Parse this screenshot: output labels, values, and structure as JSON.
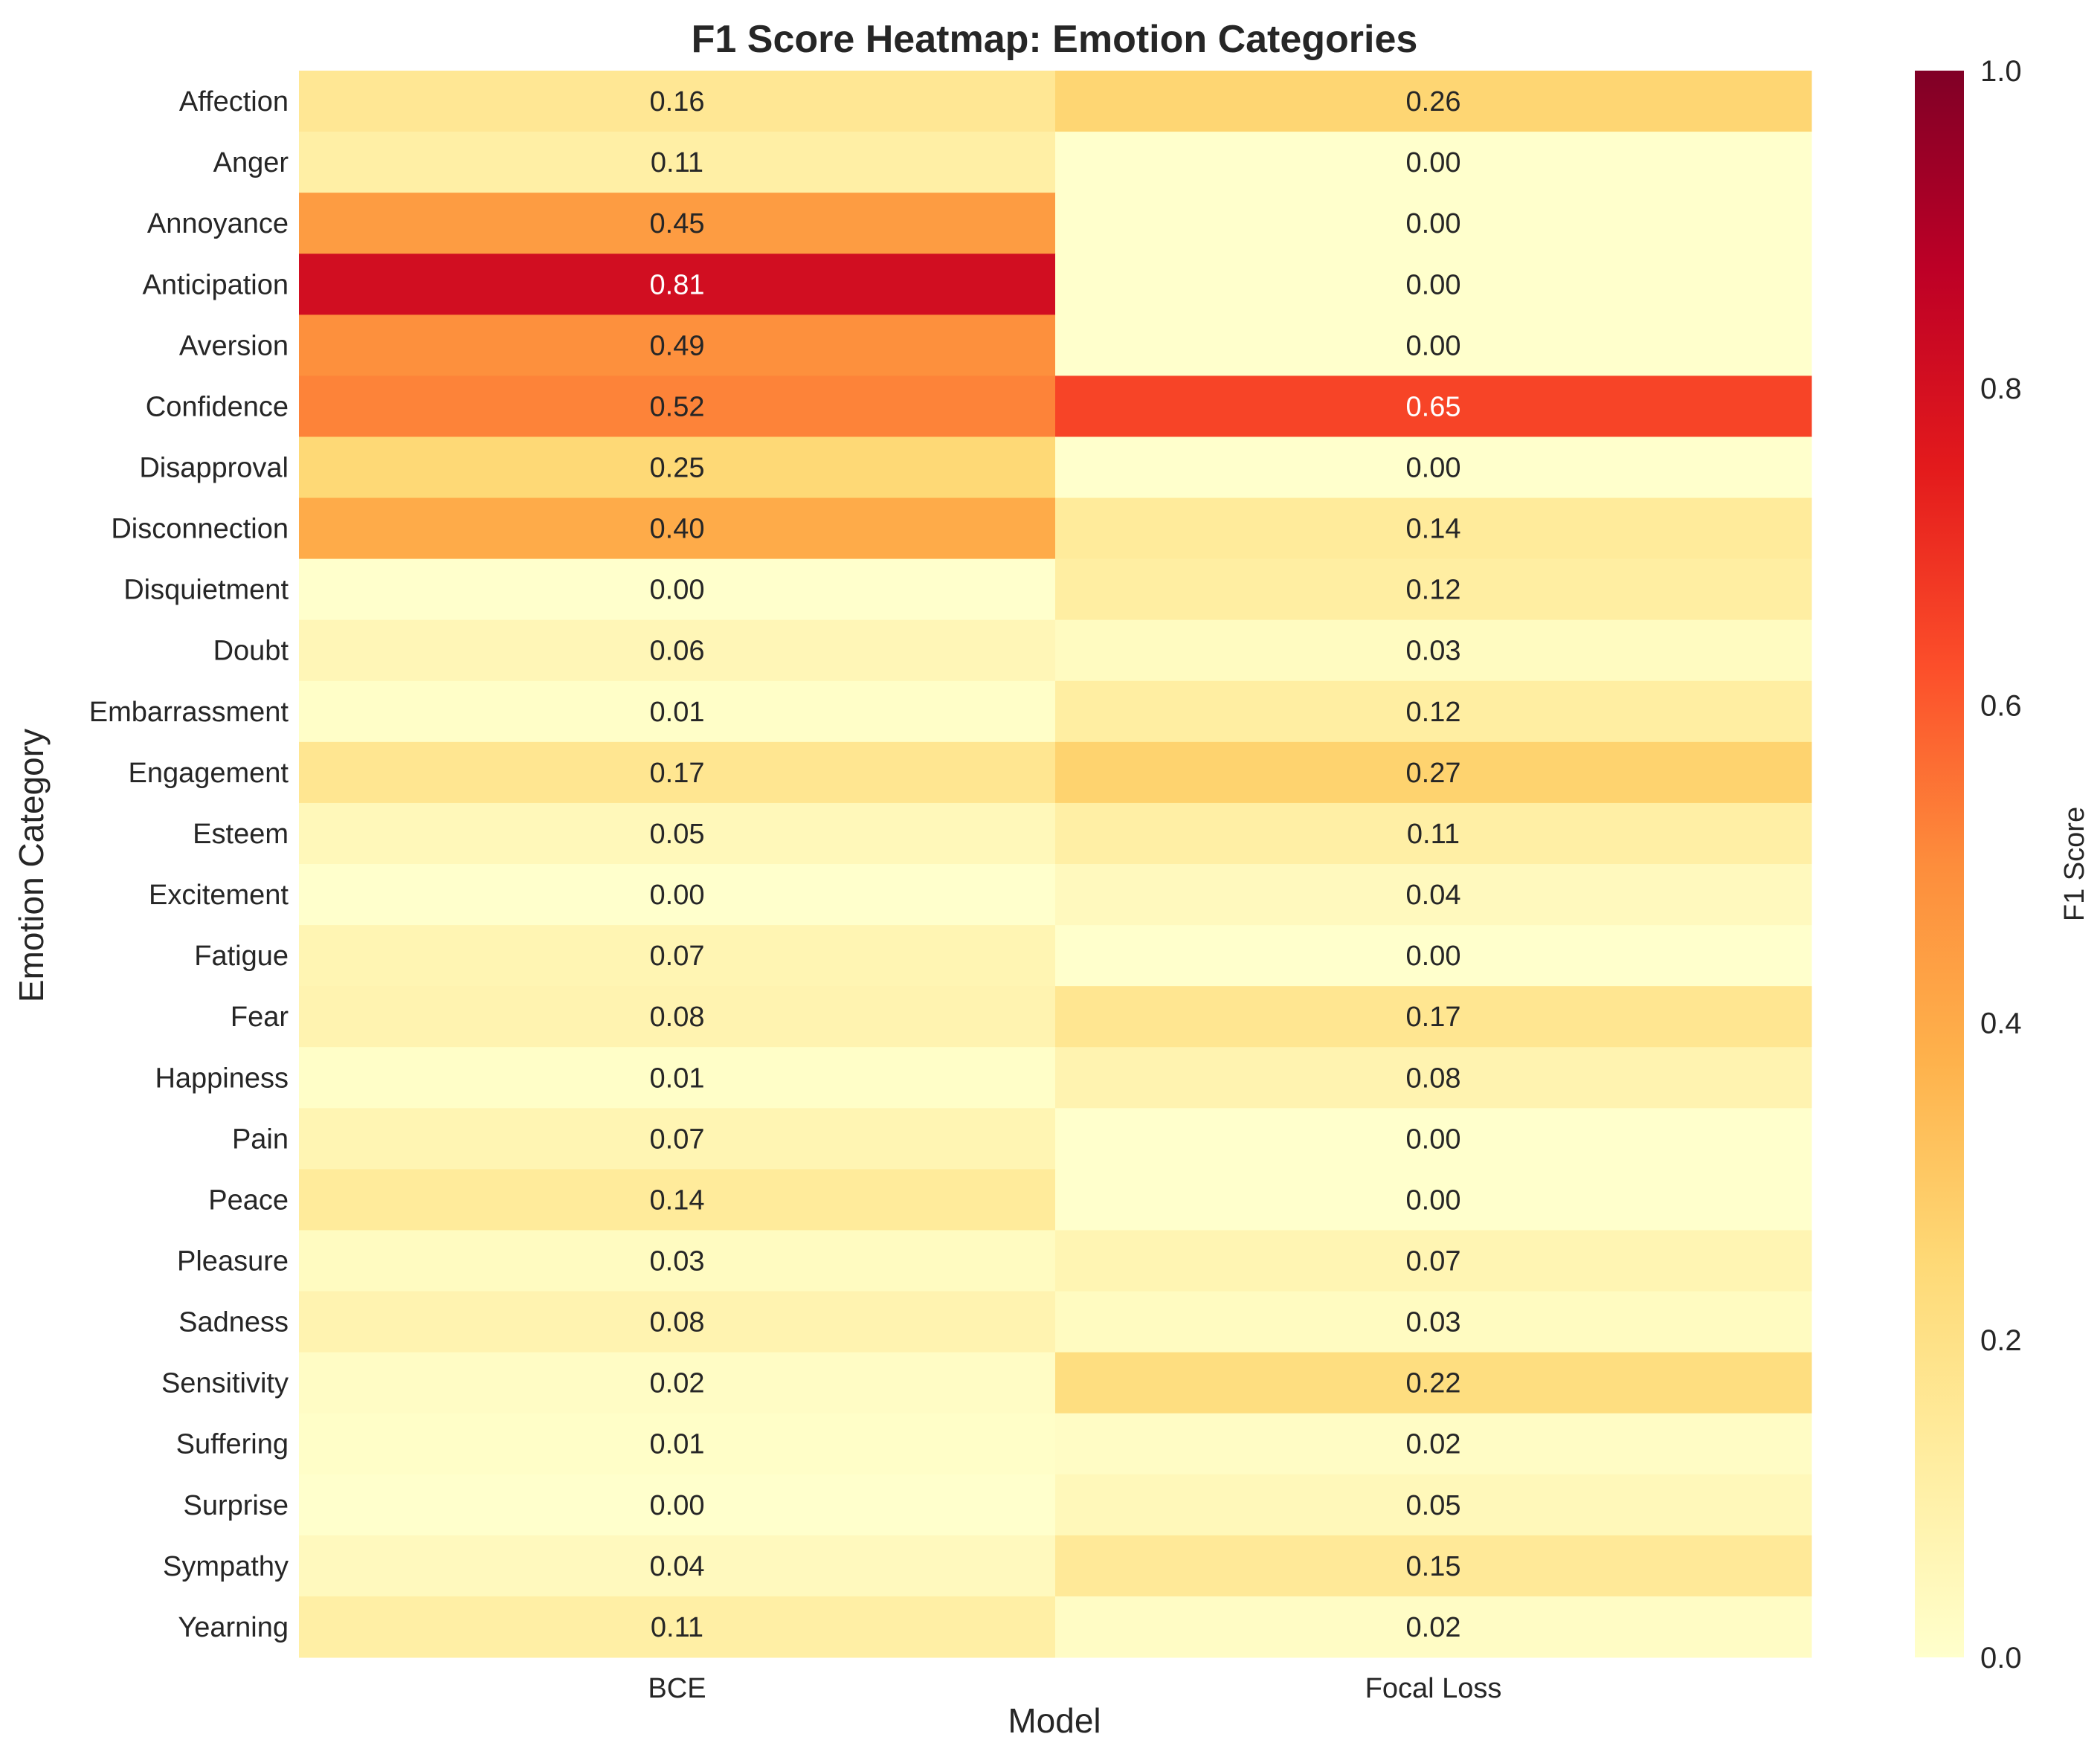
{
  "chart_data": {
    "type": "heatmap",
    "title": "F1 Score Heatmap: Emotion Categories",
    "xlabel": "Model",
    "ylabel": "Emotion Category",
    "columns": [
      "BCE",
      "Focal Loss"
    ],
    "rows": [
      "Affection",
      "Anger",
      "Annoyance",
      "Anticipation",
      "Aversion",
      "Confidence",
      "Disapproval",
      "Disconnection",
      "Disquietment",
      "Doubt",
      "Embarrassment",
      "Engagement",
      "Esteem",
      "Excitement",
      "Fatigue",
      "Fear",
      "Happiness",
      "Pain",
      "Peace",
      "Pleasure",
      "Sadness",
      "Sensitivity",
      "Suffering",
      "Surprise",
      "Sympathy",
      "Yearning"
    ],
    "values": [
      [
        0.16,
        0.26
      ],
      [
        0.11,
        0.0
      ],
      [
        0.45,
        0.0
      ],
      [
        0.81,
        0.0
      ],
      [
        0.49,
        0.0
      ],
      [
        0.52,
        0.65
      ],
      [
        0.25,
        0.0
      ],
      [
        0.4,
        0.14
      ],
      [
        0.0,
        0.12
      ],
      [
        0.06,
        0.03
      ],
      [
        0.01,
        0.12
      ],
      [
        0.17,
        0.27
      ],
      [
        0.05,
        0.11
      ],
      [
        0.0,
        0.04
      ],
      [
        0.07,
        0.0
      ],
      [
        0.08,
        0.17
      ],
      [
        0.01,
        0.08
      ],
      [
        0.07,
        0.0
      ],
      [
        0.14,
        0.0
      ],
      [
        0.03,
        0.07
      ],
      [
        0.08,
        0.03
      ],
      [
        0.02,
        0.22
      ],
      [
        0.01,
        0.02
      ],
      [
        0.0,
        0.05
      ],
      [
        0.04,
        0.15
      ],
      [
        0.11,
        0.02
      ]
    ],
    "value_format": "0.00",
    "colormap": "YlOrRd",
    "vmin": 0.0,
    "vmax": 1.0,
    "colorbar": {
      "label": "F1 Score",
      "ticks": [
        "0.0",
        "0.2",
        "0.4",
        "0.6",
        "0.8",
        "1.0"
      ]
    },
    "colors": {
      "text_dark": "#262626",
      "text_light": "#ffffff"
    }
  }
}
